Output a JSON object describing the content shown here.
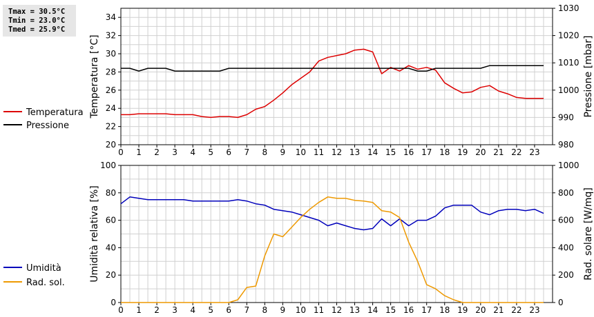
{
  "stats": [
    "Tmax = 30.5°C",
    "Tmin = 23.0°C",
    "Tmed = 25.9°C"
  ],
  "colors": {
    "temperature": "#dd0000",
    "pressure": "#000000",
    "humidity": "#0000bb",
    "radiation": "#ee9900",
    "grid": "#d0d0d0"
  },
  "chart_data": [
    {
      "type": "line",
      "x": [
        0,
        0.5,
        1,
        1.5,
        2,
        2.5,
        3,
        3.5,
        4,
        4.5,
        5,
        5.5,
        6,
        6.5,
        7,
        7.5,
        8,
        8.5,
        9,
        9.5,
        10,
        10.5,
        11,
        11.5,
        12,
        12.5,
        13,
        13.5,
        14,
        14.5,
        15,
        15.5,
        16,
        16.5,
        17,
        17.5,
        18,
        18.5,
        19,
        19.5,
        20,
        20.5,
        21,
        21.5,
        22,
        22.5,
        23,
        23.5
      ],
      "xlim": [
        0,
        24
      ],
      "xticks": [
        "0",
        "1",
        "2",
        "3",
        "4",
        "5",
        "6",
        "7",
        "8",
        "9",
        "10",
        "11",
        "12",
        "13",
        "14",
        "15",
        "16",
        "17",
        "18",
        "19",
        "20",
        "21",
        "22",
        "23"
      ],
      "y_left_label": "Temperatura [°C]",
      "y_left_lim": [
        20,
        35
      ],
      "y_left_ticks": [
        "20",
        "22",
        "24",
        "26",
        "28",
        "30",
        "32",
        "34"
      ],
      "y_right_label": "Pressione [mbar]",
      "y_right_lim": [
        980,
        1030
      ],
      "y_right_ticks": [
        "980",
        "990",
        "1000",
        "1010",
        "1020",
        "1030"
      ],
      "grid": true,
      "legend_position": "left",
      "series": [
        {
          "name": "Temperatura",
          "axis": "left",
          "values": [
            23.3,
            23.3,
            23.4,
            23.4,
            23.4,
            23.4,
            23.3,
            23.3,
            23.3,
            23.1,
            23.0,
            23.1,
            23.1,
            23.0,
            23.3,
            23.9,
            24.2,
            24.9,
            25.7,
            26.6,
            27.3,
            28.0,
            29.2,
            29.6,
            29.8,
            30.0,
            30.4,
            30.5,
            30.2,
            27.8,
            28.5,
            28.1,
            28.7,
            28.3,
            28.5,
            28.2,
            26.8,
            26.2,
            25.7,
            25.8,
            26.3,
            26.5,
            25.9,
            25.6,
            25.2,
            25.1,
            25.1,
            25.1
          ]
        },
        {
          "name": "Pressione",
          "axis": "right",
          "values": [
            1008,
            1008,
            1007,
            1008,
            1008,
            1008,
            1007,
            1007,
            1007,
            1007,
            1007,
            1007,
            1008,
            1008,
            1008,
            1008,
            1008,
            1008,
            1008,
            1008,
            1008,
            1008,
            1008,
            1008,
            1008,
            1008,
            1008,
            1008,
            1008,
            1008,
            1008,
            1008,
            1008,
            1007,
            1007,
            1008,
            1008,
            1008,
            1008,
            1008,
            1008,
            1009,
            1009,
            1009,
            1009,
            1009,
            1009,
            1009
          ]
        }
      ]
    },
    {
      "type": "line",
      "x": [
        0,
        0.5,
        1,
        1.5,
        2,
        2.5,
        3,
        3.5,
        4,
        4.5,
        5,
        5.5,
        6,
        6.5,
        7,
        7.5,
        8,
        8.5,
        9,
        9.5,
        10,
        10.5,
        11,
        11.5,
        12,
        12.5,
        13,
        13.5,
        14,
        14.5,
        15,
        15.5,
        16,
        16.5,
        17,
        17.5,
        18,
        18.5,
        19,
        19.5,
        20,
        20.5,
        21,
        21.5,
        22,
        22.5,
        23,
        23.5
      ],
      "xlim": [
        0,
        24
      ],
      "xticks": [
        "0",
        "1",
        "2",
        "3",
        "4",
        "5",
        "6",
        "7",
        "8",
        "9",
        "10",
        "11",
        "12",
        "13",
        "14",
        "15",
        "16",
        "17",
        "18",
        "19",
        "20",
        "21",
        "22",
        "23"
      ],
      "y_left_label": "Umidità relativa [%]",
      "y_left_lim": [
        0,
        100
      ],
      "y_left_ticks": [
        "0",
        "20",
        "40",
        "60",
        "80",
        "100"
      ],
      "y_right_label": "Rad. solare [W/mq]",
      "y_right_lim": [
        0,
        1000
      ],
      "y_right_ticks": [
        "0",
        "200",
        "400",
        "600",
        "800",
        "1000"
      ],
      "grid": true,
      "legend_position": "left",
      "series": [
        {
          "name": "Umidità",
          "axis": "left",
          "values": [
            72,
            77,
            76,
            75,
            75,
            75,
            75,
            75,
            74,
            74,
            74,
            74,
            74,
            75,
            74,
            72,
            71,
            68,
            67,
            66,
            64,
            62,
            60,
            56,
            58,
            56,
            54,
            53,
            54,
            61,
            56,
            61,
            56,
            60,
            60,
            63,
            69,
            71,
            71,
            71,
            66,
            64,
            67,
            68,
            68,
            67,
            68,
            65
          ]
        },
        {
          "name": "Rad. sol.",
          "axis": "right",
          "values": [
            0,
            0,
            0,
            0,
            0,
            0,
            0,
            0,
            0,
            0,
            0,
            0,
            0,
            20,
            110,
            120,
            340,
            500,
            480,
            550,
            620,
            680,
            730,
            770,
            760,
            760,
            745,
            740,
            730,
            670,
            660,
            620,
            440,
            300,
            130,
            100,
            50,
            20,
            0,
            0,
            0,
            0,
            0,
            0,
            0,
            0,
            0,
            0
          ]
        }
      ]
    }
  ]
}
